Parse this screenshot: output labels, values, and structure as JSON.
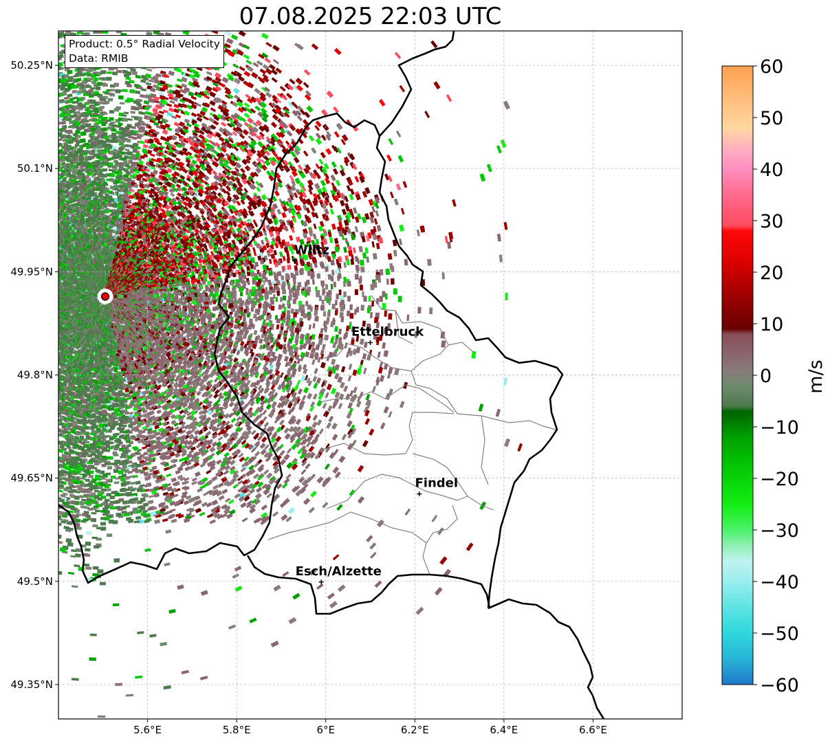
{
  "title": "07.08.2025 22:03 UTC",
  "info": {
    "product": "Product: 0.5° Radial Velocity",
    "source": "Data: RMIB"
  },
  "map": {
    "lon_range": [
      5.4,
      6.8
    ],
    "lat_range": [
      49.3,
      50.3
    ],
    "lon_ticks": [
      {
        "value": 5.6,
        "label": "5.6°E"
      },
      {
        "value": 5.8,
        "label": "5.8°E"
      },
      {
        "value": 6.0,
        "label": "6°E"
      },
      {
        "value": 6.2,
        "label": "6.2°E"
      },
      {
        "value": 6.4,
        "label": "6.4°E"
      },
      {
        "value": 6.6,
        "label": "6.6°E"
      }
    ],
    "lat_ticks": [
      {
        "value": 50.25,
        "label": "50.25°N"
      },
      {
        "value": 50.1,
        "label": "50.1°N"
      },
      {
        "value": 49.95,
        "label": "49.95°N"
      },
      {
        "value": 49.8,
        "label": "49.8°N"
      },
      {
        "value": 49.65,
        "label": "49.65°N"
      },
      {
        "value": 49.5,
        "label": "49.5°N"
      },
      {
        "value": 49.35,
        "label": "49.35°N"
      }
    ],
    "radar_site": {
      "lon": 5.505,
      "lat": 49.914,
      "color": "#e00000"
    },
    "cities": [
      {
        "name": "Wiltz",
        "lon": 5.93,
        "lat": 49.966
      },
      {
        "name": "Ettelbruck",
        "lon": 6.1,
        "lat": 49.847
      },
      {
        "name": "Findel",
        "lon": 6.21,
        "lat": 49.627
      },
      {
        "name": "Esch/Alzette",
        "lon": 5.99,
        "lat": 49.499
      }
    ]
  },
  "colorbar": {
    "unit": "m/s",
    "min": -60,
    "max": 60,
    "ticks": [
      {
        "value": 60,
        "label": "60"
      },
      {
        "value": 50,
        "label": "50"
      },
      {
        "value": 40,
        "label": "40"
      },
      {
        "value": 30,
        "label": "30"
      },
      {
        "value": 20,
        "label": "20"
      },
      {
        "value": 10,
        "label": "10"
      },
      {
        "value": 0,
        "label": "0"
      },
      {
        "value": -10,
        "label": "−10"
      },
      {
        "value": -20,
        "label": "−20"
      },
      {
        "value": -30,
        "label": "−30"
      },
      {
        "value": -40,
        "label": "−40"
      },
      {
        "value": -50,
        "label": "−50"
      },
      {
        "value": -60,
        "label": "−60"
      }
    ],
    "stops": [
      {
        "value": -60,
        "color": "#1f78c8"
      },
      {
        "value": -55,
        "color": "#27b4d6"
      },
      {
        "value": -50,
        "color": "#2fd8dc"
      },
      {
        "value": -45,
        "color": "#5ee3e3"
      },
      {
        "value": -40,
        "color": "#9aeeee"
      },
      {
        "value": -36,
        "color": "#bff2f0"
      },
      {
        "value": -33,
        "color": "#8ef0b0"
      },
      {
        "value": -30,
        "color": "#4cf26a"
      },
      {
        "value": -25,
        "color": "#12ee12"
      },
      {
        "value": -18,
        "color": "#04c804"
      },
      {
        "value": -12,
        "color": "#01a001"
      },
      {
        "value": -7,
        "color": "#006400"
      },
      {
        "value": -6,
        "color": "#4e7a4e"
      },
      {
        "value": -2,
        "color": "#6e8a6e"
      },
      {
        "value": 1,
        "color": "#8a7a7a"
      },
      {
        "value": 4,
        "color": "#8a6670"
      },
      {
        "value": 8,
        "color": "#8a4e56"
      },
      {
        "value": 9,
        "color": "#6a0000"
      },
      {
        "value": 15,
        "color": "#9a0000"
      },
      {
        "value": 22,
        "color": "#dc0000"
      },
      {
        "value": 28,
        "color": "#ff0808"
      },
      {
        "value": 29,
        "color": "#ff4a5e"
      },
      {
        "value": 35,
        "color": "#ff6a8c"
      },
      {
        "value": 40,
        "color": "#ff8ec0"
      },
      {
        "value": 44,
        "color": "#ffb0c0"
      },
      {
        "value": 48,
        "color": "#ffd8a0"
      },
      {
        "value": 53,
        "color": "#ffc080"
      },
      {
        "value": 60,
        "color": "#ffa050"
      }
    ]
  }
}
